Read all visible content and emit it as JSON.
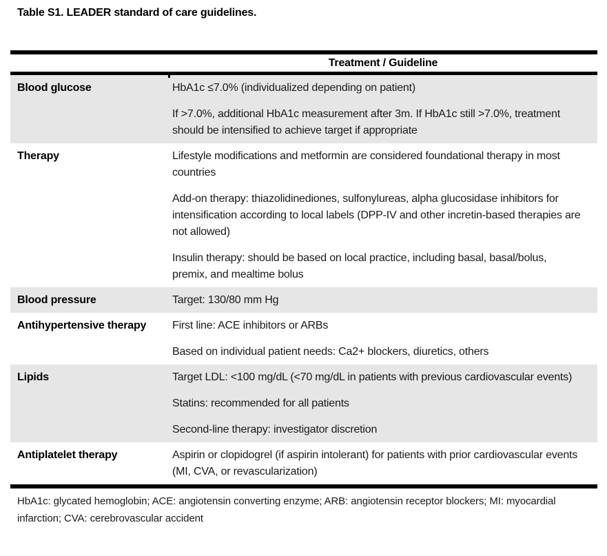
{
  "title": "Table S1. LEADER standard of care guidelines.",
  "colors": {
    "row_shade": "#e6e6e6",
    "border": "#000000",
    "text": "#1a1a1a",
    "background": "#ffffff"
  },
  "table": {
    "header": "Treatment / Guideline",
    "rows": [
      {
        "label": "Blood glucose",
        "shaded": true,
        "paragraphs": [
          "HbA1c ≤7.0% (individualized depending on patient)",
          "If >7.0%, additional HbA1c measurement after 3m. If HbA1c still >7.0%, treatment should be intensified to achieve target if appropriate"
        ]
      },
      {
        "label": "Therapy",
        "shaded": false,
        "paragraphs": [
          "Lifestyle modifications and metformin are considered foundational therapy in most countries",
          "Add-on therapy: thiazolidinediones, sulfonylureas, alpha glucosidase inhibitors for intensification according to local labels (DPP-IV and other incretin-based therapies are not allowed)",
          "Insulin therapy: should be based on local practice, including basal, basal/bolus, premix, and mealtime bolus"
        ]
      },
      {
        "label": "Blood pressure",
        "shaded": true,
        "paragraphs": [
          "Target: 130/80 mm Hg"
        ]
      },
      {
        "label": "Antihypertensive therapy",
        "shaded": false,
        "paragraphs": [
          "First line: ACE inhibitors or ARBs",
          "Based on individual patient needs: Ca2+ blockers, diuretics, others"
        ]
      },
      {
        "label": "Lipids",
        "shaded": true,
        "paragraphs": [
          "Target LDL: <100 mg/dL (<70 mg/dL in patients with previous cardiovascular events)",
          "Statins: recommended for all patients",
          "Second-line therapy: investigator discretion"
        ]
      },
      {
        "label": "Antiplatelet therapy",
        "shaded": false,
        "paragraphs": [
          "Aspirin or clopidogrel (if aspirin intolerant) for patients with prior cardiovascular events (MI, CVA, or revascularization)"
        ]
      }
    ]
  },
  "footnote": "HbA1c: glycated hemoglobin; ACE: angiotensin converting enzyme; ARB: angiotensin receptor blockers; MI: myocardial infarction; CVA: cerebrovascular accident"
}
